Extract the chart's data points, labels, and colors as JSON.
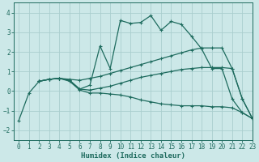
{
  "xlabel": "Humidex (Indice chaleur)",
  "xlim": [
    -0.5,
    23
  ],
  "ylim": [
    -2.5,
    4.5
  ],
  "yticks": [
    -2,
    -1,
    0,
    1,
    2,
    3,
    4
  ],
  "xticks": [
    0,
    1,
    2,
    3,
    4,
    5,
    6,
    7,
    8,
    9,
    10,
    11,
    12,
    13,
    14,
    15,
    16,
    17,
    18,
    19,
    20,
    21,
    22,
    23
  ],
  "bg_color": "#cce8e8",
  "grid_color": "#aacece",
  "line_color": "#1e6b5e",
  "lines": [
    {
      "x": [
        0,
        1,
        2,
        3,
        4,
        5,
        6,
        7,
        8,
        9,
        10,
        11,
        12,
        13,
        14,
        15,
        16,
        17,
        18,
        19,
        20,
        21,
        22,
        23
      ],
      "y": [
        -1.5,
        -0.1,
        0.5,
        0.6,
        0.65,
        0.55,
        0.1,
        0.3,
        2.3,
        1.15,
        3.6,
        3.45,
        3.5,
        3.85,
        3.1,
        3.55,
        3.4,
        2.8,
        2.15,
        1.15,
        1.15,
        -0.4,
        -1.1,
        -1.4
      ]
    },
    {
      "x": [
        2,
        3,
        4,
        5,
        6,
        7,
        8,
        9,
        10,
        11,
        12,
        13,
        14,
        15,
        16,
        17,
        18,
        19,
        20,
        21,
        22,
        23
      ],
      "y": [
        0.5,
        0.6,
        0.65,
        0.6,
        0.55,
        0.65,
        0.75,
        0.9,
        1.05,
        1.2,
        1.35,
        1.5,
        1.65,
        1.8,
        1.95,
        2.1,
        2.2,
        2.2,
        2.2,
        1.15,
        -0.4,
        -1.4
      ]
    },
    {
      "x": [
        2,
        3,
        4,
        5,
        6,
        7,
        8,
        9,
        10,
        11,
        12,
        13,
        14,
        15,
        16,
        17,
        18,
        19,
        20,
        21,
        22,
        23
      ],
      "y": [
        0.5,
        0.6,
        0.65,
        0.55,
        0.1,
        0.05,
        0.15,
        0.25,
        0.4,
        0.55,
        0.7,
        0.8,
        0.9,
        1.0,
        1.1,
        1.15,
        1.2,
        1.2,
        1.2,
        1.15,
        -0.4,
        -1.4
      ]
    },
    {
      "x": [
        2,
        3,
        4,
        5,
        6,
        7,
        8,
        9,
        10,
        11,
        12,
        13,
        14,
        15,
        16,
        17,
        18,
        19,
        20,
        21,
        22,
        23
      ],
      "y": [
        0.5,
        0.6,
        0.65,
        0.5,
        0.05,
        -0.1,
        -0.1,
        -0.15,
        -0.2,
        -0.3,
        -0.45,
        -0.55,
        -0.65,
        -0.7,
        -0.75,
        -0.75,
        -0.75,
        -0.8,
        -0.8,
        -0.85,
        -1.1,
        -1.4
      ]
    }
  ]
}
